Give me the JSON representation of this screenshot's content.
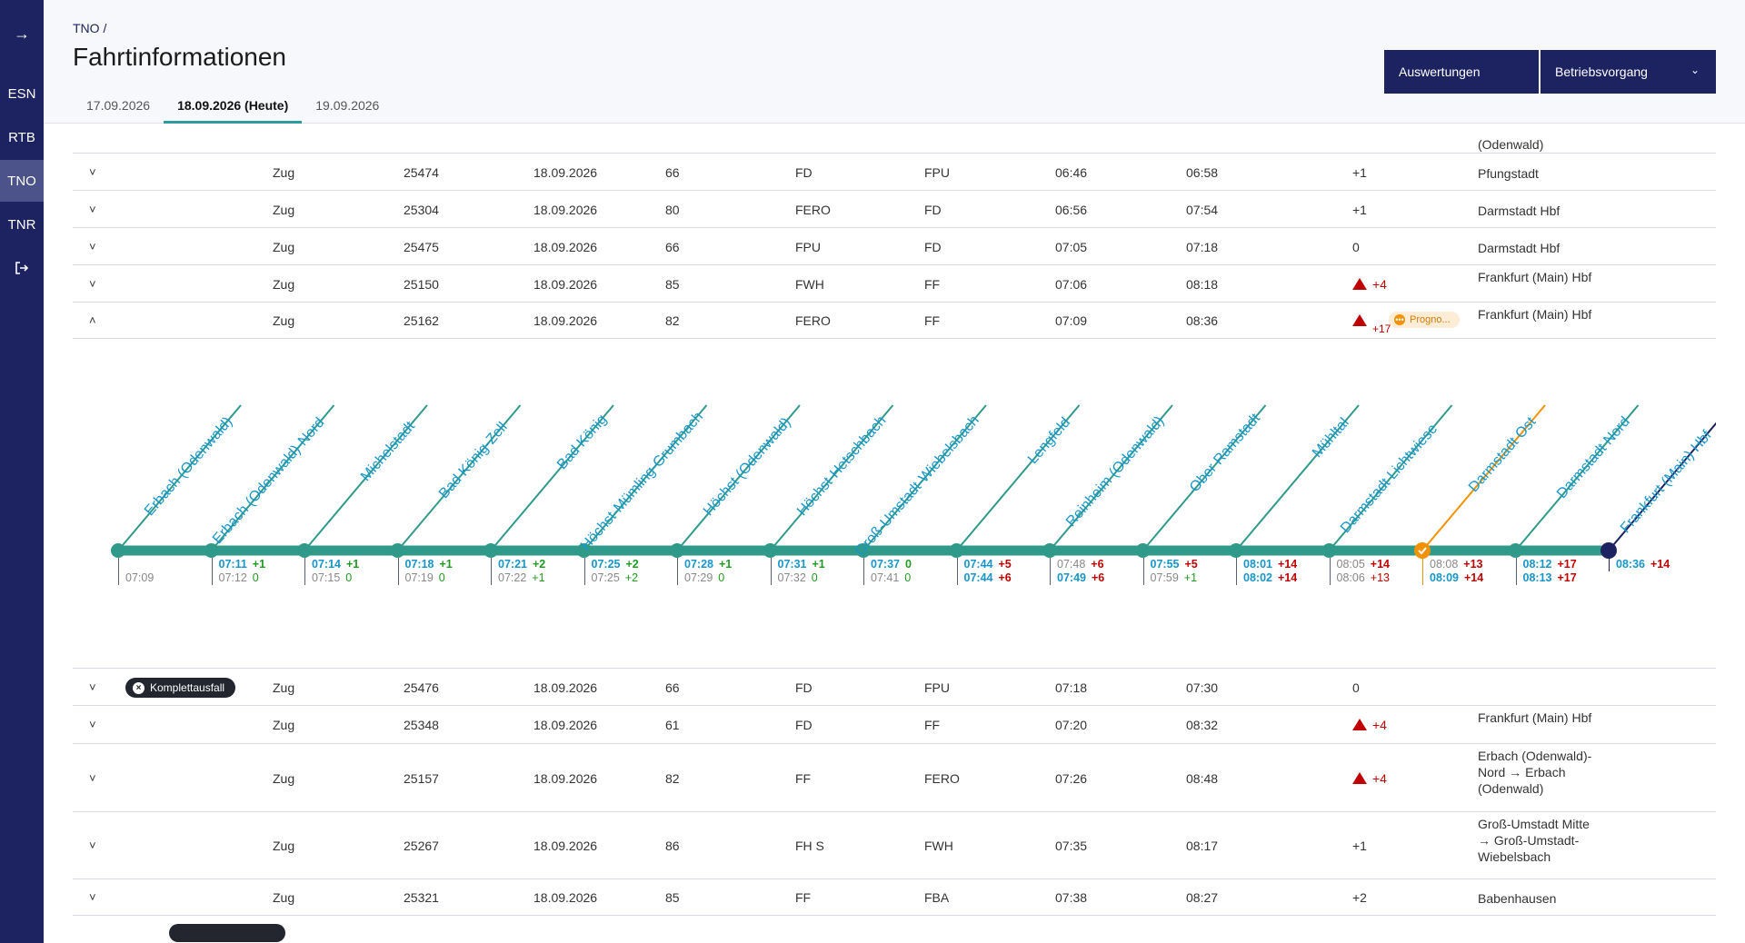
{
  "sidebar": {
    "toggle_icon": "arrow-right-icon",
    "items": [
      {
        "label": "ESN"
      },
      {
        "label": "RTB"
      },
      {
        "label": "TNO"
      },
      {
        "label": "TNR"
      }
    ],
    "logout_icon": "logout-icon"
  },
  "header": {
    "breadcrumb": "TNO  /",
    "title": "Fahrtinformationen",
    "tabs": [
      "17.09.2026",
      "18.09.2026 (Heute)",
      "19.09.2026"
    ],
    "button_auswertungen": "Auswertungen",
    "button_betriebsvorgang": "Betriebsvorgang"
  },
  "rows": [
    {
      "art": "Zug",
      "nr": "25474",
      "datum": "18.09.2026",
      "linie": "66",
      "von": "FD",
      "nach": "FPU",
      "ab": "06:46",
      "an": "06:58",
      "verspaetung": "+1",
      "ziel": "Pfungstadt"
    },
    {
      "art": "Zug",
      "nr": "25304",
      "datum": "18.09.2026",
      "linie": "80",
      "von": "FERO",
      "nach": "FD",
      "ab": "06:56",
      "an": "07:54",
      "verspaetung": "+1",
      "ziel": "Darmstadt Hbf"
    },
    {
      "art": "Zug",
      "nr": "25475",
      "datum": "18.09.2026",
      "linie": "66",
      "von": "FPU",
      "nach": "FD",
      "ab": "07:05",
      "an": "07:18",
      "verspaetung": "0",
      "ziel": "Darmstadt Hbf"
    },
    {
      "art": "Zug",
      "nr": "25150",
      "datum": "18.09.2026",
      "linie": "85",
      "von": "FWH",
      "nach": "FF",
      "ab": "07:06",
      "an": "08:18",
      "verspaetung": "+4",
      "ziel": "Frankfurt (Main) Hbf"
    },
    {
      "art": "Zug",
      "nr": "25162",
      "datum": "18.09.2026",
      "linie": "82",
      "von": "FERO",
      "nach": "FF",
      "ab": "07:09",
      "an": "08:36",
      "verspaetung": "+17",
      "ziel": "Frankfurt (Main) Hbf",
      "badge": "Progno..."
    },
    {
      "art": "Zug",
      "nr": "25476",
      "datum": "18.09.2026",
      "linie": "66",
      "von": "FD",
      "nach": "FPU",
      "ab": "07:18",
      "an": "07:30",
      "verspaetung": "0",
      "ziel": "",
      "badge": "Komplettausfall"
    },
    {
      "art": "Zug",
      "nr": "25348",
      "datum": "18.09.2026",
      "linie": "61",
      "von": "FD",
      "nach": "FF",
      "ab": "07:20",
      "an": "08:32",
      "verspaetung": "+4",
      "ziel": "Frankfurt (Main) Hbf"
    },
    {
      "art": "Zug",
      "nr": "25157",
      "datum": "18.09.2026",
      "linie": "82",
      "von": "FF",
      "nach": "FERO",
      "ab": "07:26",
      "an": "08:48",
      "verspaetung": "+4",
      "ziel": "Erbach (Odenwald)-Nord → Erbach (Odenwald)"
    },
    {
      "art": "Zug",
      "nr": "25267",
      "datum": "18.09.2026",
      "linie": "86",
      "von": "FH S",
      "nach": "FWH",
      "ab": "07:35",
      "an": "08:17",
      "verspaetung": "+1",
      "ziel": "Groß-Umstadt Mitte → Groß-Umstadt-Wiebelsbach"
    },
    {
      "art": "Zug",
      "nr": "25321",
      "datum": "18.09.2026",
      "linie": "85",
      "von": "FF",
      "nach": "FBA",
      "ab": "07:38",
      "an": "08:27",
      "verspaetung": "+2",
      "ziel": "Babenhausen"
    }
  ],
  "partial_top_row": {
    "ziel": "(Odenwald)"
  },
  "timeline": {
    "colors": {
      "track": "#2f9a8a",
      "blue": "#1896c8",
      "orange": "#f39200",
      "navy": "#1d2361",
      "green": "#1f9b20",
      "red": "#c00000"
    },
    "stations": [
      {
        "name": "Erbach (Odenwald)",
        "plan": "07:09"
      },
      {
        "name": "Erbach (Odenwald)-Nord",
        "ist": "07:11",
        "ist_d": "+1",
        "plan": "07:12",
        "plan_d": "0"
      },
      {
        "name": "Michelstadt",
        "ist": "07:14",
        "ist_d": "+1",
        "plan": "07:15",
        "plan_d": "0"
      },
      {
        "name": "Bad König-Zell",
        "ist": "07:18",
        "ist_d": "+1",
        "plan": "07:19",
        "plan_d": "0"
      },
      {
        "name": "Bad König",
        "ist": "07:21",
        "ist_d": "+2",
        "plan": "07:22",
        "plan_d": "+1"
      },
      {
        "name": "Höchst-Mümling-Grumbach",
        "ist": "07:25",
        "ist_d": "+2",
        "plan": "07:25",
        "plan_d": "+2"
      },
      {
        "name": "Höchst (Odenwald)",
        "ist": "07:28",
        "ist_d": "+1",
        "plan": "07:29",
        "plan_d": "0"
      },
      {
        "name": "Höchst-Hetschbach",
        "ist": "07:31",
        "ist_d": "+1",
        "plan": "07:32",
        "plan_d": "0"
      },
      {
        "name": "Groß-Umstadt-Wiebelsbach",
        "ist": "07:37",
        "ist_d": "0",
        "plan": "07:41",
        "plan_d": "0"
      },
      {
        "name": "Lengfeld",
        "ist": "07:44",
        "ist_d": "+5",
        "plan": "07:44",
        "plan_d": "+6",
        "plan_bold": true
      },
      {
        "name": "Reinheim (Odenwald)",
        "ist": "07:48",
        "ist_d": "+6",
        "plan": "07:49",
        "plan_d": "+6",
        "ist_grey": true,
        "plan_bold": true
      },
      {
        "name": "Ober Ramstadt",
        "ist": "07:55",
        "ist_d": "+5",
        "plan": "07:59",
        "plan_d": "+1"
      },
      {
        "name": "Mühltal",
        "ist": "08:01",
        "ist_d": "+14",
        "plan": "08:02",
        "plan_d": "+14",
        "plan_bold": true
      },
      {
        "name": "Darmstadt Lichtwiese",
        "ist": "08:05",
        "ist_d": "+14",
        "plan": "08:06",
        "plan_d": "+13",
        "ist_grey": true
      },
      {
        "name": "Darmstadt Ost",
        "ist": "08:08",
        "ist_d": "+13",
        "plan": "08:09",
        "plan_d": "+14",
        "ist_grey": true,
        "plan_bold": true,
        "current": true
      },
      {
        "name": "Darmstadt Nord",
        "ist": "08:12",
        "ist_d": "+17",
        "plan": "08:13",
        "plan_d": "+17",
        "plan_bold": true
      },
      {
        "name": "Frankfurt (Main) Hbf",
        "ist": "08:36",
        "ist_d": "+14",
        "end": true
      }
    ]
  }
}
